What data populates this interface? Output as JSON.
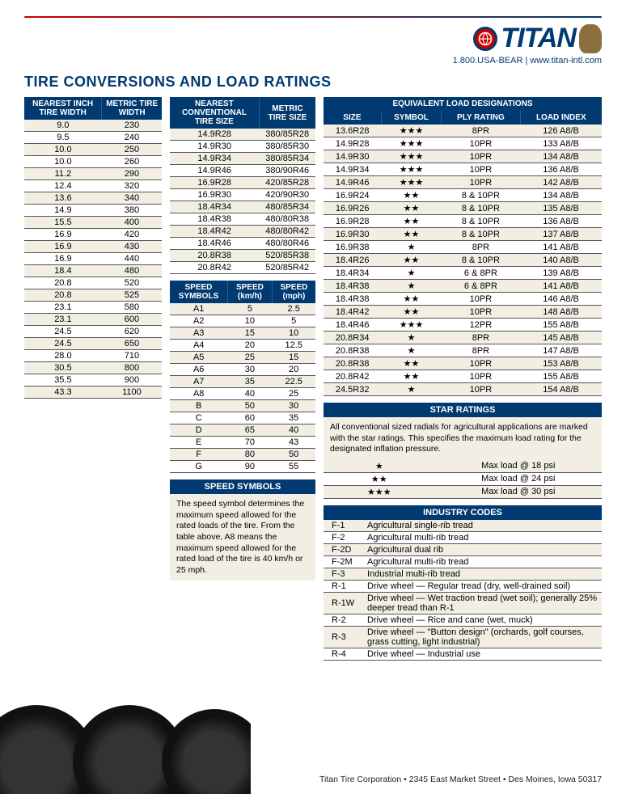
{
  "brand": "TITAN",
  "contact": "1.800.USA-BEAR | www.titan-intl.com",
  "page_title": "TIRE CONVERSIONS AND LOAD RATINGS",
  "colors": {
    "primary": "#003a70",
    "accent": "#cc0000",
    "row_odd": "#f2eee4"
  },
  "width_table": {
    "headers": [
      "NEAREST INCH TIRE WIDTH",
      "METRIC TIRE WIDTH"
    ],
    "rows": [
      [
        "9.0",
        "230"
      ],
      [
        "9.5",
        "240"
      ],
      [
        "10.0",
        "250"
      ],
      [
        "10.0",
        "260"
      ],
      [
        "11.2",
        "290"
      ],
      [
        "12.4",
        "320"
      ],
      [
        "13.6",
        "340"
      ],
      [
        "14.9",
        "380"
      ],
      [
        "15.5",
        "400"
      ],
      [
        "16.9",
        "420"
      ],
      [
        "16.9",
        "430"
      ],
      [
        "16.9",
        "440"
      ],
      [
        "18.4",
        "480"
      ],
      [
        "20.8",
        "520"
      ],
      [
        "20.8",
        "525"
      ],
      [
        "23.1",
        "580"
      ],
      [
        "23.1",
        "600"
      ],
      [
        "24.5",
        "620"
      ],
      [
        "24.5",
        "650"
      ],
      [
        "28.0",
        "710"
      ],
      [
        "30.5",
        "800"
      ],
      [
        "35.5",
        "900"
      ],
      [
        "43.3",
        "1100"
      ]
    ]
  },
  "size_table": {
    "headers": [
      "NEAREST CONVENTIONAL TIRE SIZE",
      "METRIC TIRE SIZE"
    ],
    "rows": [
      [
        "14.9R28",
        "380/85R28"
      ],
      [
        "14.9R30",
        "380/85R30"
      ],
      [
        "14.9R34",
        "380/85R34"
      ],
      [
        "14.9R46",
        "380/90R46"
      ],
      [
        "16.9R28",
        "420/85R28"
      ],
      [
        "16.9R30",
        "420/90R30"
      ],
      [
        "18.4R34",
        "480/85R34"
      ],
      [
        "18.4R38",
        "480/80R38"
      ],
      [
        "18.4R42",
        "480/80R42"
      ],
      [
        "18.4R46",
        "480/80R46"
      ],
      [
        "20.8R38",
        "520/85R38"
      ],
      [
        "20.8R42",
        "520/85R42"
      ]
    ]
  },
  "speed_table": {
    "headers": [
      "SPEED SYMBOLS",
      "SPEED (km/h)",
      "SPEED (mph)"
    ],
    "rows": [
      [
        "A1",
        "5",
        "2.5"
      ],
      [
        "A2",
        "10",
        "5"
      ],
      [
        "A3",
        "15",
        "10"
      ],
      [
        "A4",
        "20",
        "12.5"
      ],
      [
        "A5",
        "25",
        "15"
      ],
      [
        "A6",
        "30",
        "20"
      ],
      [
        "A7",
        "35",
        "22.5"
      ],
      [
        "A8",
        "40",
        "25"
      ],
      [
        "B",
        "50",
        "30"
      ],
      [
        "C",
        "60",
        "35"
      ],
      [
        "D",
        "65",
        "40"
      ],
      [
        "E",
        "70",
        "43"
      ],
      [
        "F",
        "80",
        "50"
      ],
      [
        "G",
        "90",
        "55"
      ]
    ]
  },
  "speed_symbols_title": "SPEED SYMBOLS",
  "speed_symbols_text": "The speed symbol determines the maximum speed allowed for the rated loads of the tire. From the table above, A8 means the maximum speed allowed for the rated load of the tire is 40 km/h or 25 mph.",
  "load_table": {
    "title": "EQUIVALENT LOAD DESIGNATIONS",
    "headers": [
      "SIZE",
      "SYMBOL",
      "PLY RATING",
      "LOAD INDEX"
    ],
    "rows": [
      [
        "13.6R28",
        "★★★",
        "8PR",
        "126 A8/B"
      ],
      [
        "14.9R28",
        "★★★",
        "10PR",
        "133 A8/B"
      ],
      [
        "14.9R30",
        "★★★",
        "10PR",
        "134 A8/B"
      ],
      [
        "14.9R34",
        "★★★",
        "10PR",
        "136 A8/B"
      ],
      [
        "14.9R46",
        "★★★",
        "10PR",
        "142 A8/B"
      ],
      [
        "16.9R24",
        "★★",
        "8 & 10PR",
        "134 A8/B"
      ],
      [
        "16.9R26",
        "★★",
        "8 & 10PR",
        "135 A8/B"
      ],
      [
        "16.9R28",
        "★★",
        "8 & 10PR",
        "136 A8/B"
      ],
      [
        "16.9R30",
        "★★",
        "8 & 10PR",
        "137 A8/B"
      ],
      [
        "16.9R38",
        "★",
        "8PR",
        "141 A8/B"
      ],
      [
        "18.4R26",
        "★★",
        "8 & 10PR",
        "140 A8/B"
      ],
      [
        "18.4R34",
        "★",
        "6 & 8PR",
        "139 A8/B"
      ],
      [
        "18.4R38",
        "★",
        "6 & 8PR",
        "141 A8/B"
      ],
      [
        "18.4R38",
        "★★",
        "10PR",
        "146 A8/B"
      ],
      [
        "18.4R42",
        "★★",
        "10PR",
        "148 A8/B"
      ],
      [
        "18.4R46",
        "★★★",
        "12PR",
        "155 A8/B"
      ],
      [
        "20.8R34",
        "★",
        "8PR",
        "145 A8/B"
      ],
      [
        "20.8R38",
        "★",
        "8PR",
        "147 A8/B"
      ],
      [
        "20.8R38",
        "★★",
        "10PR",
        "153 A8/B"
      ],
      [
        "20.8R42",
        "★★",
        "10PR",
        "155 A8/B"
      ],
      [
        "24.5R32",
        "★",
        "10PR",
        "154 A8/B"
      ]
    ]
  },
  "star_ratings": {
    "title": "STAR RATINGS",
    "text": "All conventional sized radials for agricultural applications are marked with the star ratings. This specifies the maximum load rating for the designated inflation pressure.",
    "rows": [
      [
        "★",
        "Max load @ 18 psi"
      ],
      [
        "★★",
        "Max load @ 24 psi"
      ],
      [
        "★★★",
        "Max load @ 30 psi"
      ]
    ]
  },
  "industry_codes": {
    "title": "INDUSTRY CODES",
    "rows": [
      [
        "F-1",
        "Agricultural single-rib tread"
      ],
      [
        "F-2",
        "Agricultural multi-rib tread"
      ],
      [
        "F-2D",
        "Agricultural dual rib"
      ],
      [
        "F-2M",
        "Agricultural multi-rib tread"
      ],
      [
        "F-3",
        "Industrial multi-rib tread"
      ],
      [
        "R-1",
        "Drive wheel — Regular tread (dry, well-drained soil)"
      ],
      [
        "R-1W",
        "Drive wheel — Wet traction tread (wet soil); generally 25% deeper tread than R-1"
      ],
      [
        "R-2",
        "Drive wheel — Rice and cane (wet, muck)"
      ],
      [
        "R-3",
        "Drive wheel — \"Button design\" (orchards, golf courses, grass cutting, light industrial)"
      ],
      [
        "R-4",
        "Drive wheel — Industrial use"
      ]
    ]
  },
  "footer": "Titan Tire Corporation • 2345 East Market Street • Des Moines, Iowa 50317"
}
